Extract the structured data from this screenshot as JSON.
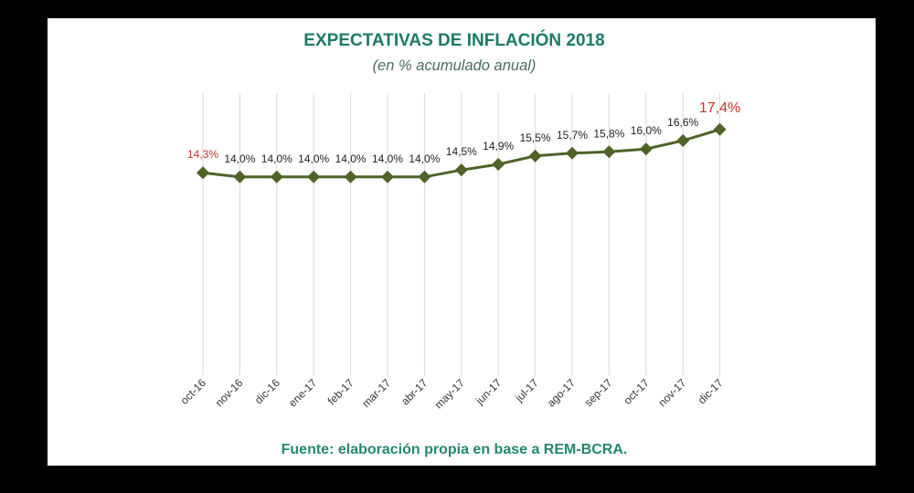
{
  "colors": {
    "background": "#000000",
    "panel": "#ffffff",
    "title": "#1d7a68",
    "subtitle": "#4b6a66",
    "source": "#24876f",
    "line": "#4f6228",
    "highlight": "#c0392b",
    "grid": "#d9d9d9",
    "data_label": "#1f1f1f",
    "tick_label": "#363636"
  },
  "chart_data": {
    "type": "line",
    "title": "EXPECTATIVAS DE INFLACIÓN 2018",
    "subtitle": "(en % acumulado anual)",
    "source": "Fuente: elaboración propia en base a REM-BCRA.",
    "categories": [
      "oct-16",
      "nov-16",
      "dic-16",
      "ene-17",
      "feb-17",
      "mar-17",
      "abr-17",
      "may-17",
      "jun-17",
      "jul-17",
      "ago-17",
      "sep-17",
      "oct-17",
      "nov-17",
      "dic-17"
    ],
    "series": [
      {
        "values": [
          14.3,
          14.0,
          14.0,
          14.0,
          14.0,
          14.0,
          14.0,
          14.5,
          14.9,
          15.5,
          15.7,
          15.8,
          16.0,
          16.6,
          17.4
        ],
        "data_labels": [
          "14,3%",
          "14,0%",
          "14,0%",
          "14,0%",
          "14,0%",
          "14,0%",
          "14,0%",
          "14,5%",
          "14,9%",
          "15,5%",
          "15,7%",
          "15,8%",
          "16,0%",
          "16,6%",
          "17,4%"
        ],
        "marker_shape": "diamond",
        "color": "#4f6228"
      }
    ],
    "highlighted_points": [
      0,
      14
    ],
    "ylim": [
      0,
      20
    ],
    "grid_vertical": true,
    "grid_horizontal": false,
    "y_axis_visible": false,
    "show_legend": false
  }
}
